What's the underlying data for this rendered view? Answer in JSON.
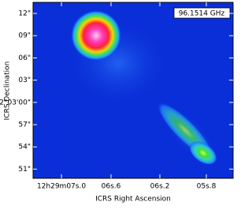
{
  "image": {
    "annotation": "96.1514 GHz",
    "x_label": "ICRS Right Ascension",
    "y_label": "ICRS Declination",
    "x_ticks": [
      "12h29m07s.0",
      "06s.6",
      "06s.2",
      "05s.8"
    ],
    "y_ticks": [
      "12\"",
      "09\"",
      "06\"",
      "03\"",
      "2°03'00\"",
      "57\"",
      "54\"",
      "51\""
    ]
  }
}
